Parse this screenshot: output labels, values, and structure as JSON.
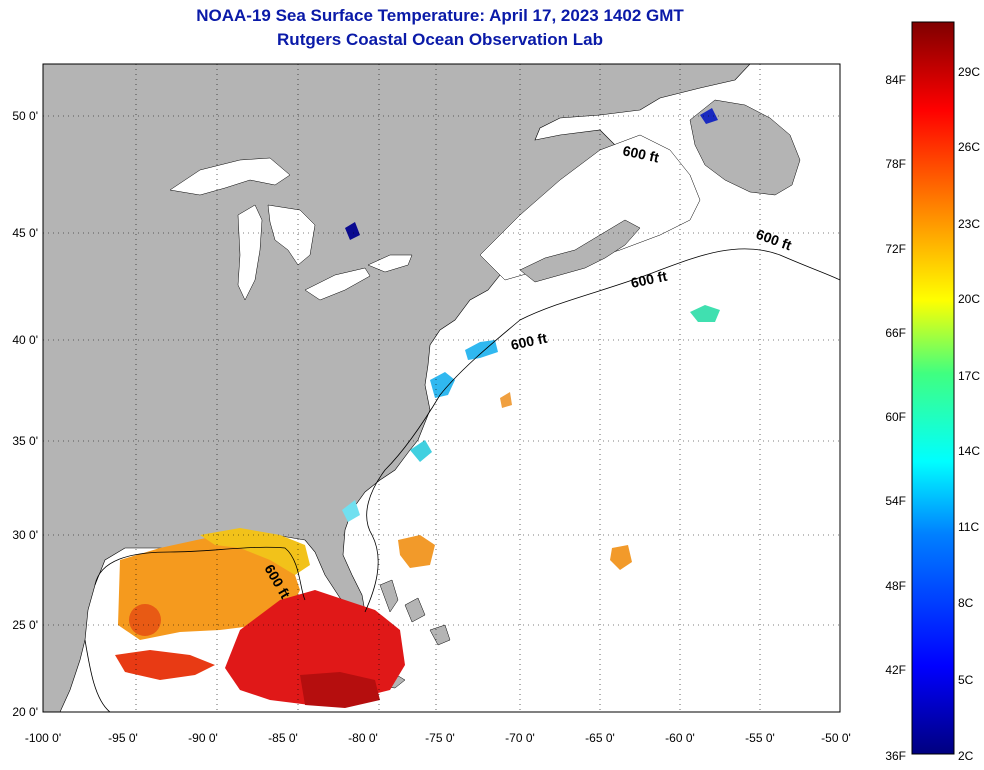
{
  "title_line1": "NOAA-19 Sea Surface Temperature:  April 17, 2023 1402 GMT",
  "title_line2": "Rutgers Coastal Ocean Observation Lab",
  "lon_labels": [
    "-100 0'",
    "-95 0'",
    "-90 0'",
    "-85 0'",
    "-80 0'",
    "-75 0'",
    "-70 0'",
    "-65 0'",
    "-60 0'",
    "-55 0'",
    "-50 0'"
  ],
  "lat_labels": [
    "50 0'",
    "45 0'",
    "40 0'",
    "35 0'",
    "30 0'",
    "25 0'",
    "20 0'"
  ],
  "contour_label": "600 ft",
  "colorbar": {
    "fahrenheit": [
      "84F",
      "78F",
      "72F",
      "66F",
      "60F",
      "54F",
      "48F",
      "42F",
      "36F"
    ],
    "celsius": [
      "29C",
      "26C",
      "23C",
      "20C",
      "17C",
      "14C",
      "11C",
      "8C",
      "5C",
      "2C"
    ]
  },
  "colors": {
    "land": "#b4b4b4",
    "ocean": "#ffffff",
    "title": "#0a1aa8"
  }
}
